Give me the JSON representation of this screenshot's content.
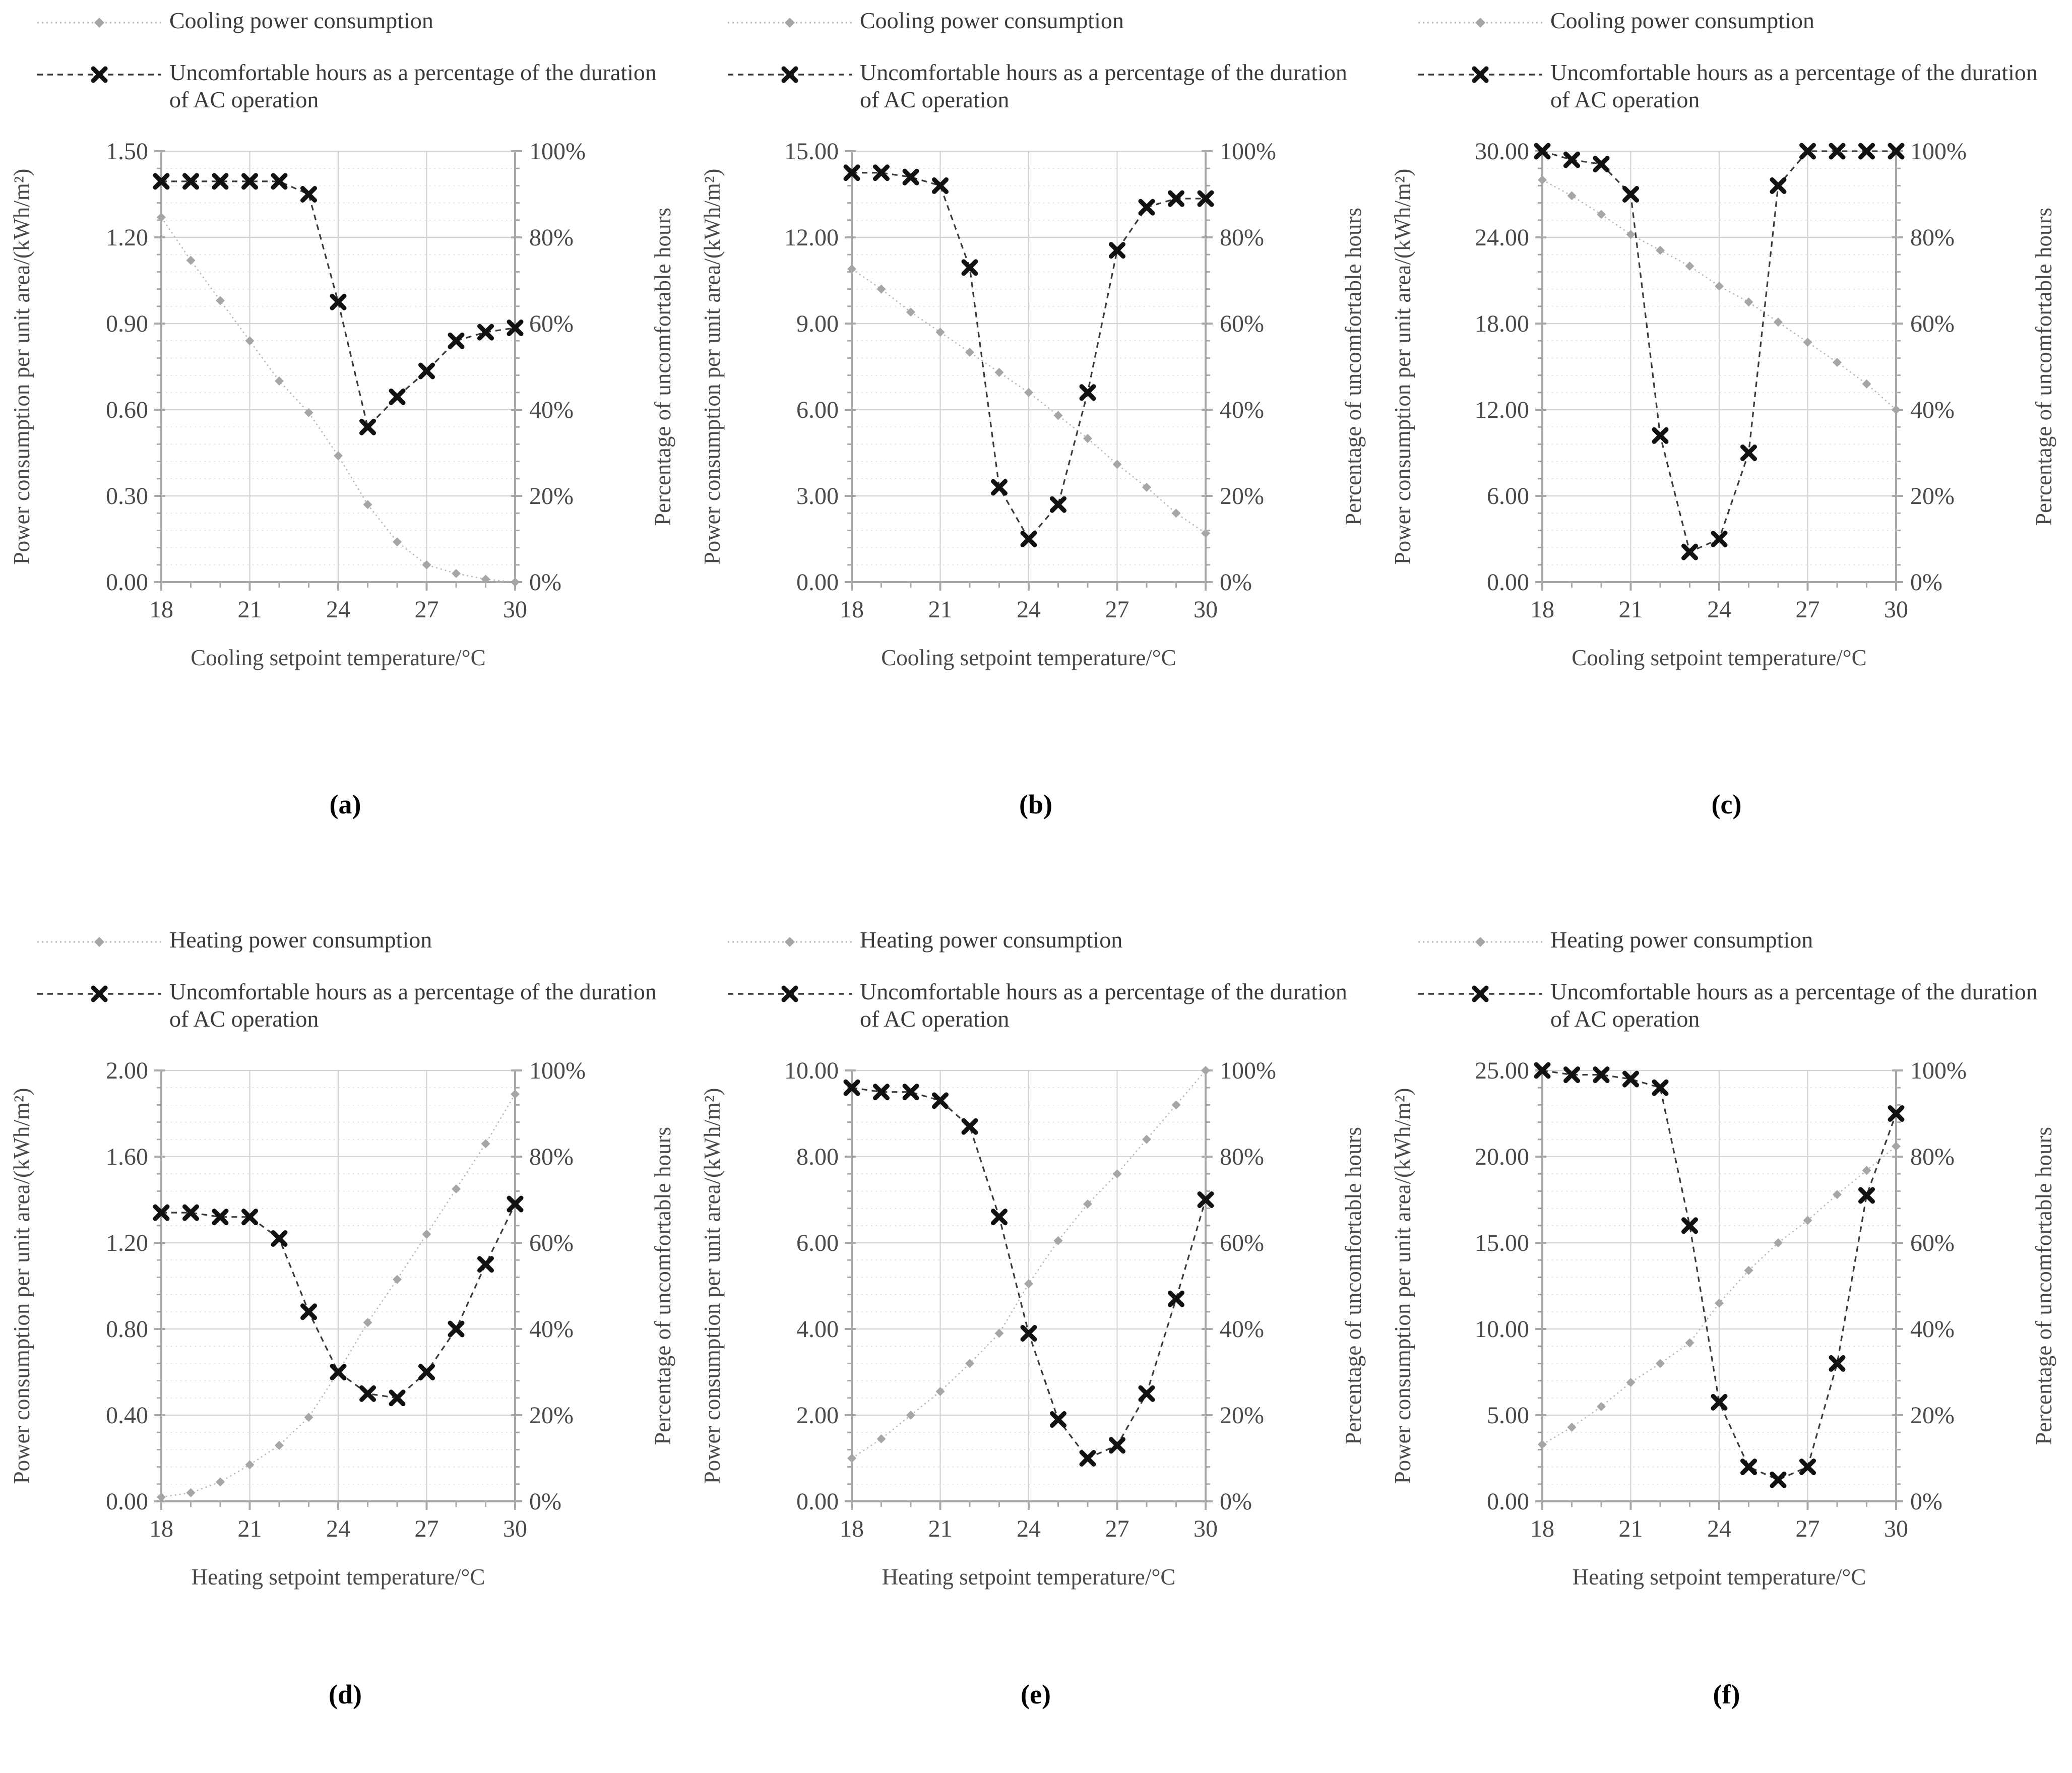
{
  "page": {
    "background": "#ffffff"
  },
  "colors": {
    "power_series": "#a6a6a6",
    "power_line": "#b9b9b9",
    "uncomfortable_series": "#111111",
    "uncomfortable_line": "#3a3a3a",
    "grid_major": "#d4d4d4",
    "grid_minor": "#dcdcdc",
    "axis": "#a8a8a8",
    "tick_text": "#4a4a4a"
  },
  "chart_data": [
    {
      "id": "a",
      "caption": "(a)",
      "type": "line",
      "legend": [
        {
          "label": "Cooling power consumption",
          "marker": "diamond-icon"
        },
        {
          "label": "Uncomfortable hours as a percentage of the duration of AC operation",
          "marker": "x-icon"
        }
      ],
      "xlabel": "Cooling setpoint temperature/°C",
      "ylabel_left": "Power consumption per unit area/(kWh/m²)",
      "ylabel_right": "Percentage of uncomfortable hours",
      "x": [
        18,
        19,
        20,
        21,
        22,
        23,
        24,
        25,
        26,
        27,
        28,
        29,
        30
      ],
      "x_tick_labels": [
        "18",
        "21",
        "24",
        "27",
        "30"
      ],
      "left_axis": {
        "min": 0,
        "max": 1.5,
        "ticks": [
          "0.00",
          "0.30",
          "0.60",
          "0.90",
          "1.20",
          "1.50"
        ]
      },
      "right_axis": {
        "min": 0,
        "max": 100,
        "ticks": [
          "0%",
          "20%",
          "40%",
          "60%",
          "80%",
          "100%"
        ]
      },
      "series": [
        {
          "name": "Cooling power consumption",
          "axis": "left",
          "marker": "diamond",
          "line": "dotted",
          "values": [
            1.27,
            1.12,
            0.98,
            0.84,
            0.7,
            0.59,
            0.44,
            0.27,
            0.14,
            0.06,
            0.03,
            0.01,
            0.0
          ]
        },
        {
          "name": "Uncomfortable hours as a percentage of the duration of AC operation",
          "axis": "right",
          "marker": "x",
          "line": "dashed",
          "values": [
            93,
            93,
            93,
            93,
            93,
            90,
            65,
            36,
            43,
            49,
            56,
            58,
            59
          ]
        }
      ]
    },
    {
      "id": "b",
      "caption": "(b)",
      "type": "line",
      "legend": [
        {
          "label": "Cooling power consumption",
          "marker": "diamond-icon"
        },
        {
          "label": "Uncomfortable hours as a percentage of the duration of AC operation",
          "marker": "x-icon"
        }
      ],
      "xlabel": "Cooling setpoint temperature/°C",
      "ylabel_left": "Power consumption per unit area/(kWh/m²)",
      "ylabel_right": "Percentage of uncomfortable hours",
      "x": [
        18,
        19,
        20,
        21,
        22,
        23,
        24,
        25,
        26,
        27,
        28,
        29,
        30
      ],
      "x_tick_labels": [
        "18",
        "21",
        "24",
        "27",
        "30"
      ],
      "left_axis": {
        "min": 0,
        "max": 15,
        "ticks": [
          "0.00",
          "3.00",
          "6.00",
          "9.00",
          "12.00",
          "15.00"
        ]
      },
      "right_axis": {
        "min": 0,
        "max": 100,
        "ticks": [
          "0%",
          "20%",
          "40%",
          "60%",
          "80%",
          "100%"
        ]
      },
      "series": [
        {
          "name": "Cooling power consumption",
          "axis": "left",
          "marker": "diamond",
          "line": "dotted",
          "values": [
            10.9,
            10.2,
            9.4,
            8.7,
            8.0,
            7.3,
            6.6,
            5.8,
            5.0,
            4.1,
            3.3,
            2.4,
            1.7
          ]
        },
        {
          "name": "Uncomfortable hours as a percentage of the duration of AC operation",
          "axis": "right",
          "marker": "x",
          "line": "dashed",
          "values": [
            95,
            95,
            94,
            92,
            73,
            22,
            10,
            18,
            44,
            77,
            87,
            89,
            89
          ]
        }
      ]
    },
    {
      "id": "c",
      "caption": "(c)",
      "type": "line",
      "legend": [
        {
          "label": "Cooling power consumption",
          "marker": "diamond-icon"
        },
        {
          "label": "Uncomfortable hours as a percentage of the duration of AC operation",
          "marker": "x-icon"
        }
      ],
      "xlabel": "Cooling setpoint temperature/°C",
      "ylabel_left": "Power consumption per unit area/(kWh/m²)",
      "ylabel_right": "Percentage of uncomfortable hours",
      "x": [
        18,
        19,
        20,
        21,
        22,
        23,
        24,
        25,
        26,
        27,
        28,
        29,
        30
      ],
      "x_tick_labels": [
        "18",
        "21",
        "24",
        "27",
        "30"
      ],
      "left_axis": {
        "min": 0,
        "max": 30,
        "ticks": [
          "0.00",
          "6.00",
          "12.00",
          "18.00",
          "24.00",
          "30.00"
        ]
      },
      "right_axis": {
        "min": 0,
        "max": 100,
        "ticks": [
          "0%",
          "20%",
          "40%",
          "60%",
          "80%",
          "100%"
        ]
      },
      "series": [
        {
          "name": "Cooling power consumption",
          "axis": "left",
          "marker": "diamond",
          "line": "dotted",
          "values": [
            28.0,
            26.9,
            25.6,
            24.2,
            23.1,
            22.0,
            20.6,
            19.5,
            18.1,
            16.7,
            15.3,
            13.8,
            12.0
          ]
        },
        {
          "name": "Uncomfortable hours as a percentage of the duration of AC operation",
          "axis": "right",
          "marker": "x",
          "line": "dashed",
          "values": [
            100,
            98,
            97,
            90,
            34,
            7,
            10,
            30,
            92,
            100,
            100,
            100,
            100
          ]
        }
      ]
    },
    {
      "id": "d",
      "caption": "(d)",
      "type": "line",
      "legend": [
        {
          "label": "Heating power consumption",
          "marker": "diamond-icon"
        },
        {
          "label": "Uncomfortable hours as a percentage of the duration of AC operation",
          "marker": "x-icon"
        }
      ],
      "xlabel": "Heating setpoint temperature/°C",
      "ylabel_left": "Power consumption per unit area/(kWh/m²)",
      "ylabel_right": "Percentage of uncomfortable hours",
      "x": [
        18,
        19,
        20,
        21,
        22,
        23,
        24,
        25,
        26,
        27,
        28,
        29,
        30
      ],
      "x_tick_labels": [
        "18",
        "21",
        "24",
        "27",
        "30"
      ],
      "left_axis": {
        "min": 0,
        "max": 2,
        "ticks": [
          "0.00",
          "0.40",
          "0.80",
          "1.20",
          "1.60",
          "2.00"
        ]
      },
      "right_axis": {
        "min": 0,
        "max": 100,
        "ticks": [
          "0%",
          "20%",
          "40%",
          "60%",
          "80%",
          "100%"
        ]
      },
      "series": [
        {
          "name": "Heating power consumption",
          "axis": "left",
          "marker": "diamond",
          "line": "dotted",
          "values": [
            0.02,
            0.04,
            0.09,
            0.17,
            0.26,
            0.39,
            0.6,
            0.83,
            1.03,
            1.24,
            1.45,
            1.66,
            1.89
          ]
        },
        {
          "name": "Uncomfortable hours as a percentage of the duration of AC operation",
          "axis": "right",
          "marker": "x",
          "line": "dashed",
          "values": [
            67,
            67,
            66,
            66,
            61,
            44,
            30,
            25,
            24,
            30,
            40,
            55,
            69
          ]
        }
      ]
    },
    {
      "id": "e",
      "caption": "(e)",
      "type": "line",
      "legend": [
        {
          "label": "Heating power consumption",
          "marker": "diamond-icon"
        },
        {
          "label": "Uncomfortable hours as a percentage of the duration of AC operation",
          "marker": "x-icon"
        }
      ],
      "xlabel": "Heating setpoint temperature/°C",
      "ylabel_left": "Power consumption per unit area/(kWh/m²)",
      "ylabel_right": "Percentage of uncomfortable hours",
      "x": [
        18,
        19,
        20,
        21,
        22,
        23,
        24,
        25,
        26,
        27,
        28,
        29,
        30
      ],
      "x_tick_labels": [
        "18",
        "21",
        "24",
        "27",
        "30"
      ],
      "left_axis": {
        "min": 0,
        "max": 10,
        "ticks": [
          "0.00",
          "2.00",
          "4.00",
          "6.00",
          "8.00",
          "10.00"
        ]
      },
      "right_axis": {
        "min": 0,
        "max": 100,
        "ticks": [
          "0%",
          "20%",
          "40%",
          "60%",
          "80%",
          "100%"
        ]
      },
      "series": [
        {
          "name": "Heating power consumption",
          "axis": "left",
          "marker": "diamond",
          "line": "dotted",
          "values": [
            1.0,
            1.45,
            2.0,
            2.55,
            3.2,
            3.9,
            5.05,
            6.05,
            6.9,
            7.6,
            8.4,
            9.2,
            10.0
          ]
        },
        {
          "name": "Uncomfortable hours as a percentage of the duration of AC operation",
          "axis": "right",
          "marker": "x",
          "line": "dashed",
          "values": [
            96,
            95,
            95,
            93,
            87,
            66,
            39,
            19,
            10,
            13,
            25,
            47,
            70
          ]
        }
      ]
    },
    {
      "id": "f",
      "caption": "(f)",
      "type": "line",
      "legend": [
        {
          "label": "Heating power consumption",
          "marker": "diamond-icon"
        },
        {
          "label": "Uncomfortable hours as a percentage of the duration of AC operation",
          "marker": "x-icon"
        }
      ],
      "xlabel": "Heating setpoint temperature/°C",
      "ylabel_left": "Power consumption per unit area/(kWh/m²)",
      "ylabel_right": "Percentage of uncomfortable hours",
      "x": [
        18,
        19,
        20,
        21,
        22,
        23,
        24,
        25,
        26,
        27,
        28,
        29,
        30
      ],
      "x_tick_labels": [
        "18",
        "21",
        "24",
        "27",
        "30"
      ],
      "left_axis": {
        "min": 0,
        "max": 25,
        "ticks": [
          "0.00",
          "5.00",
          "10.00",
          "15.00",
          "20.00",
          "25.00"
        ]
      },
      "right_axis": {
        "min": 0,
        "max": 100,
        "ticks": [
          "0%",
          "20%",
          "40%",
          "60%",
          "80%",
          "100%"
        ]
      },
      "series": [
        {
          "name": "Heating power consumption",
          "axis": "left",
          "marker": "diamond",
          "line": "dotted",
          "values": [
            3.3,
            4.3,
            5.5,
            6.9,
            8.0,
            9.2,
            11.5,
            13.4,
            15.0,
            16.3,
            17.8,
            19.2,
            20.6
          ]
        },
        {
          "name": "Uncomfortable hours as a percentage of the duration of AC operation",
          "axis": "right",
          "marker": "x",
          "line": "dashed",
          "values": [
            100,
            99,
            99,
            98,
            96,
            64,
            23,
            8,
            5,
            8,
            32,
            71,
            90
          ]
        }
      ]
    }
  ]
}
